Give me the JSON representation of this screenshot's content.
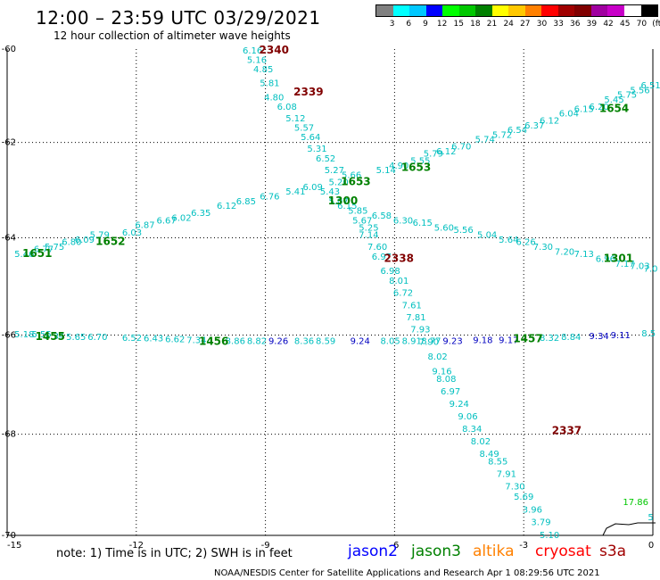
{
  "title": "12:00 – 23:59 UTC 03/29/2021",
  "subtitle": "12 hour collection of altimeter wave heights",
  "colorbar": {
    "colors": [
      "#808080",
      "#00ffff",
      "#00c8ff",
      "#0000ff",
      "#00ff00",
      "#00c800",
      "#008000",
      "#ffff00",
      "#ffc800",
      "#ff8000",
      "#ff0000",
      "#a00000",
      "#800000",
      "#a000a0",
      "#c800c8",
      "#ffffff",
      "#000000"
    ],
    "labels": [
      "3",
      "6",
      "9",
      "12",
      "15",
      "18",
      "21",
      "24",
      "27",
      "30",
      "33",
      "36",
      "39",
      "42",
      "45",
      "70",
      "(ft)"
    ]
  },
  "axes": {
    "x_ticks": [
      "-15",
      "-12",
      "-9",
      "-6",
      "-3",
      "0"
    ],
    "y_ticks": [
      "-60",
      "-62",
      "-64",
      "-66",
      "-68",
      "-70"
    ],
    "xlim": [
      -15,
      0
    ],
    "ylim": [
      -70,
      -60
    ]
  },
  "note": "note: 1) Time is in UTC; 2) SWH is in feet",
  "satellites": [
    {
      "name": "jason2",
      "color": "#0000ff"
    },
    {
      "name": "jason3",
      "color": "#008000"
    },
    {
      "name": "altika",
      "color": "#ff8000"
    },
    {
      "name": "cryosat",
      "color": "#ff0000"
    },
    {
      "name": "s3a",
      "color": "#a00000"
    }
  ],
  "footer": "NOAA/NESDIS Center for Satellite Applications and Research    Apr  1 08:29:56 UTC 2021",
  "tracks": [
    {
      "sat": "cryosat",
      "color": "#00bfbf",
      "times": [
        {
          "label": "2340",
          "lon": -8.8,
          "lat": -60.1,
          "color": "#800000"
        },
        {
          "label": "2339",
          "lon": -8.0,
          "lat": -61.0,
          "color": "#800000"
        },
        {
          "label": "2338",
          "lon": -5.9,
          "lat": -64.5,
          "color": "#800000"
        },
        {
          "label": "2337",
          "lon": -2.0,
          "lat": -68.0,
          "color": "#800000"
        }
      ],
      "points": [
        {
          "lon": -9.3,
          "lat": -60.1,
          "v": "6.16"
        },
        {
          "lon": -9.2,
          "lat": -60.3,
          "v": "5.16"
        },
        {
          "lon": -9.05,
          "lat": -60.5,
          "v": "4.85"
        },
        {
          "lon": -8.9,
          "lat": -60.8,
          "v": "5.81"
        },
        {
          "lon": -8.8,
          "lat": -61.1,
          "v": "4.80"
        },
        {
          "lon": -8.5,
          "lat": -61.3,
          "v": "6.08"
        },
        {
          "lon": -8.3,
          "lat": -61.55,
          "v": "5.12"
        },
        {
          "lon": -8.1,
          "lat": -61.75,
          "v": "5.57"
        },
        {
          "lon": -7.95,
          "lat": -61.95,
          "v": "5.64"
        },
        {
          "lon": -7.8,
          "lat": -62.2,
          "v": "5.31"
        },
        {
          "lon": -7.6,
          "lat": -62.4,
          "v": "6.52"
        },
        {
          "lon": -7.4,
          "lat": -62.65,
          "v": "5.27"
        },
        {
          "lon": -7.3,
          "lat": -62.9,
          "v": "5.20"
        },
        {
          "lon": -7.5,
          "lat": -63.1,
          "v": "5.43"
        },
        {
          "lon": -7.3,
          "lat": -63.3,
          "v": "5.07"
        },
        {
          "lon": -7.1,
          "lat": -63.4,
          "v": "6.15"
        },
        {
          "lon": -6.85,
          "lat": -63.5,
          "v": "5.85"
        },
        {
          "lon": -6.75,
          "lat": -63.7,
          "v": "5.67"
        },
        {
          "lon": -6.6,
          "lat": -63.85,
          "v": "5.25"
        },
        {
          "lon": -6.6,
          "lat": -64.0,
          "v": "7.14"
        },
        {
          "lon": -6.4,
          "lat": -64.25,
          "v": "7.60"
        },
        {
          "lon": -6.3,
          "lat": -64.45,
          "v": "6.97"
        },
        {
          "lon": -6.1,
          "lat": -64.75,
          "v": "6.98"
        },
        {
          "lon": -5.9,
          "lat": -64.95,
          "v": "8.01"
        },
        {
          "lon": -5.8,
          "lat": -65.2,
          "v": "6.72"
        },
        {
          "lon": -5.6,
          "lat": -65.45,
          "v": "7.61"
        },
        {
          "lon": -5.5,
          "lat": -65.7,
          "v": "7.81"
        },
        {
          "lon": -5.4,
          "lat": -65.95,
          "v": "7.93"
        },
        {
          "lon": -5.2,
          "lat": -66.2,
          "v": "7.90"
        },
        {
          "lon": -5.0,
          "lat": -66.5,
          "v": "8.02"
        },
        {
          "lon": -4.9,
          "lat": -66.8,
          "v": "9.16"
        },
        {
          "lon": -4.8,
          "lat": -66.95,
          "v": "8.08"
        },
        {
          "lon": -4.7,
          "lat": -67.2,
          "v": "6.97"
        },
        {
          "lon": -4.5,
          "lat": -67.45,
          "v": "9.24"
        },
        {
          "lon": -4.3,
          "lat": -67.7,
          "v": "9.06"
        },
        {
          "lon": -4.2,
          "lat": -67.95,
          "v": "8.34"
        },
        {
          "lon": -4.0,
          "lat": -68.2,
          "v": "8.02"
        },
        {
          "lon": -3.8,
          "lat": -68.45,
          "v": "8.49"
        },
        {
          "lon": -3.6,
          "lat": -68.6,
          "v": "8.55"
        },
        {
          "lon": -3.4,
          "lat": -68.85,
          "v": "7.91"
        },
        {
          "lon": -3.2,
          "lat": -69.1,
          "v": "7.30"
        },
        {
          "lon": -3.0,
          "lat": -69.3,
          "v": "5.69"
        },
        {
          "lon": -2.8,
          "lat": -69.55,
          "v": "3.96"
        },
        {
          "lon": -2.6,
          "lat": -69.8,
          "v": "3.79"
        },
        {
          "lon": -2.4,
          "lat": -70.05,
          "v": "5.10"
        }
      ]
    },
    {
      "sat": "jason3",
      "color": "#00bfbf",
      "times": [
        {
          "label": "1651",
          "lon": -14.3,
          "lat": -64.4,
          "color": "#008000"
        },
        {
          "label": "1652",
          "lon": -12.6,
          "lat": -64.15,
          "color": "#008000"
        },
        {
          "label": "1300",
          "lon": -7.2,
          "lat": -63.3,
          "color": "#008000"
        },
        {
          "label": "1653",
          "lon": -6.9,
          "lat": -62.9,
          "color": "#008000"
        },
        {
          "label": "1653",
          "lon": -5.5,
          "lat": -62.6,
          "color": "#008000"
        },
        {
          "label": "1654",
          "lon": -0.9,
          "lat": -61.35,
          "color": "#008000"
        }
      ],
      "points": [
        {
          "lon": -14.6,
          "lat": -64.4,
          "v": "5.46"
        },
        {
          "lon": -14.15,
          "lat": -64.3,
          "v": "6.77"
        },
        {
          "lon": -13.9,
          "lat": -64.25,
          "v": "5.75"
        },
        {
          "lon": -13.5,
          "lat": -64.15,
          "v": "6.80"
        },
        {
          "lon": -13.2,
          "lat": -64.1,
          "v": "6.09"
        },
        {
          "lon": -12.85,
          "lat": -64.0,
          "v": "5.79"
        },
        {
          "lon": -12.1,
          "lat": -63.95,
          "v": "6.03"
        },
        {
          "lon": -11.8,
          "lat": -63.8,
          "v": "6.87"
        },
        {
          "lon": -11.3,
          "lat": -63.7,
          "v": "6.67"
        },
        {
          "lon": -10.95,
          "lat": -63.65,
          "v": "6.02"
        },
        {
          "lon": -10.5,
          "lat": -63.55,
          "v": "6.35"
        },
        {
          "lon": -9.9,
          "lat": -63.4,
          "v": "6.12"
        },
        {
          "lon": -9.45,
          "lat": -63.3,
          "v": "6.85"
        },
        {
          "lon": -8.9,
          "lat": -63.2,
          "v": "6.76"
        },
        {
          "lon": -8.3,
          "lat": -63.1,
          "v": "5.41"
        },
        {
          "lon": -7.9,
          "lat": -63.0,
          "v": "6.09"
        },
        {
          "lon": -7.0,
          "lat": -62.75,
          "v": "5.66"
        },
        {
          "lon": -6.2,
          "lat": -62.65,
          "v": "5.14"
        },
        {
          "lon": -5.9,
          "lat": -62.55,
          "v": "4.90"
        },
        {
          "lon": -5.4,
          "lat": -62.45,
          "v": "5.55"
        },
        {
          "lon": -5.1,
          "lat": -62.3,
          "v": "5.79"
        },
        {
          "lon": -4.8,
          "lat": -62.25,
          "v": "6.12"
        },
        {
          "lon": -4.45,
          "lat": -62.15,
          "v": "6.70"
        },
        {
          "lon": -3.9,
          "lat": -62.0,
          "v": "5.74"
        },
        {
          "lon": -3.5,
          "lat": -61.9,
          "v": "5.72"
        },
        {
          "lon": -3.15,
          "lat": -61.8,
          "v": "6.54"
        },
        {
          "lon": -2.75,
          "lat": -61.7,
          "v": "6.37"
        },
        {
          "lon": -2.4,
          "lat": -61.6,
          "v": "6.12"
        },
        {
          "lon": -1.95,
          "lat": -61.45,
          "v": "6.04"
        },
        {
          "lon": -1.6,
          "lat": -61.35,
          "v": "6.15"
        },
        {
          "lon": -1.25,
          "lat": -61.3,
          "v": "6.20"
        },
        {
          "lon": -0.9,
          "lat": -61.15,
          "v": "5.45"
        },
        {
          "lon": -0.6,
          "lat": -61.05,
          "v": "5.75"
        },
        {
          "lon": -0.3,
          "lat": -60.95,
          "v": "5.56"
        },
        {
          "lon": -0.05,
          "lat": -60.85,
          "v": "6.51"
        }
      ]
    },
    {
      "sat": "jason3",
      "color": "#00bfbf",
      "times": [
        {
          "label": "1301",
          "lon": -0.8,
          "lat": -64.5,
          "color": "#008000"
        }
      ],
      "points": [
        {
          "lon": -6.3,
          "lat": -63.6,
          "v": "6.58"
        },
        {
          "lon": -5.8,
          "lat": -63.7,
          "v": "6.30"
        },
        {
          "lon": -5.35,
          "lat": -63.75,
          "v": "6.15"
        },
        {
          "lon": -4.85,
          "lat": -63.85,
          "v": "5.60"
        },
        {
          "lon": -4.4,
          "lat": -63.9,
          "v": "5.56"
        },
        {
          "lon": -3.85,
          "lat": -64.0,
          "v": "5.04"
        },
        {
          "lon": -3.35,
          "lat": -64.1,
          "v": "5.64"
        },
        {
          "lon": -2.95,
          "lat": -64.15,
          "v": "6.26"
        },
        {
          "lon": -2.55,
          "lat": -64.25,
          "v": "7.30"
        },
        {
          "lon": -2.05,
          "lat": -64.35,
          "v": "7.20"
        },
        {
          "lon": -1.6,
          "lat": -64.4,
          "v": "7.13"
        },
        {
          "lon": -1.1,
          "lat": -64.5,
          "v": "6.96"
        },
        {
          "lon": -0.65,
          "lat": -64.6,
          "v": "7.17"
        },
        {
          "lon": -0.3,
          "lat": -64.65,
          "v": "7.03"
        },
        {
          "lon": -0.05,
          "lat": -64.7,
          "v": "7.0"
        }
      ]
    },
    {
      "sat": "jason2",
      "color": "#00bfbf",
      "times": [
        {
          "label": "1455",
          "lon": -14.0,
          "lat": -66.1,
          "color": "#008000"
        },
        {
          "label": "1456",
          "lon": -10.2,
          "lat": -66.2,
          "color": "#008000"
        },
        {
          "label": "1457",
          "lon": -2.9,
          "lat": -66.15,
          "color": "#008000"
        }
      ],
      "points": [
        {
          "lon": -14.6,
          "lat": -66.05,
          "v": "5.18"
        },
        {
          "lon": -14.2,
          "lat": -66.05,
          "v": "5.55"
        },
        {
          "lon": -13.9,
          "lat": -66.08,
          "v": "5.34"
        },
        {
          "lon": -13.4,
          "lat": -66.1,
          "v": "5.65"
        },
        {
          "lon": -12.9,
          "lat": -66.1,
          "v": "6.70"
        },
        {
          "lon": -12.1,
          "lat": -66.12,
          "v": "6.52"
        },
        {
          "lon": -11.6,
          "lat": -66.13,
          "v": "6.43"
        },
        {
          "lon": -11.1,
          "lat": -66.15,
          "v": "6.62"
        },
        {
          "lon": -10.6,
          "lat": -66.16,
          "v": "7.34"
        },
        {
          "lon": -9.7,
          "lat": -66.18,
          "v": "8.86"
        },
        {
          "lon": -9.2,
          "lat": -66.18,
          "v": "8.82"
        },
        {
          "lon": -8.7,
          "lat": -66.18,
          "v": "9.26",
          "c": "#0000c0"
        },
        {
          "lon": -8.1,
          "lat": -66.18,
          "v": "8.36"
        },
        {
          "lon": -7.6,
          "lat": -66.18,
          "v": "8.59"
        },
        {
          "lon": -6.8,
          "lat": -66.18,
          "v": "9.24",
          "c": "#0000c0"
        },
        {
          "lon": -6.1,
          "lat": -66.18,
          "v": "8.05"
        },
        {
          "lon": -5.6,
          "lat": -66.18,
          "v": "8.91"
        },
        {
          "lon": -5.15,
          "lat": -66.18,
          "v": "8.77"
        },
        {
          "lon": -4.65,
          "lat": -66.18,
          "v": "9.23",
          "c": "#0000c0"
        },
        {
          "lon": -3.95,
          "lat": -66.16,
          "v": "9.18",
          "c": "#0000c0"
        },
        {
          "lon": -3.35,
          "lat": -66.16,
          "v": "9.17",
          "c": "#0000c0"
        },
        {
          "lon": -2.4,
          "lat": -66.12,
          "v": "8.32"
        },
        {
          "lon": -1.9,
          "lat": -66.1,
          "v": "8.84"
        },
        {
          "lon": -1.25,
          "lat": -66.08,
          "v": "9.34",
          "c": "#0000c0"
        },
        {
          "lon": -0.75,
          "lat": -66.06,
          "v": "9.11",
          "c": "#0000c0"
        },
        {
          "lon": -0.1,
          "lat": -66.03,
          "v": "8.5"
        }
      ]
    },
    {
      "sat": "jason3",
      "color": "#00bfbf",
      "times": [],
      "points": [
        {
          "lon": -0.4,
          "lat": -69.4,
          "v": "17.86",
          "c": "#00c800"
        },
        {
          "lon": -0.05,
          "lat": -69.7,
          "v": "5"
        }
      ]
    }
  ]
}
